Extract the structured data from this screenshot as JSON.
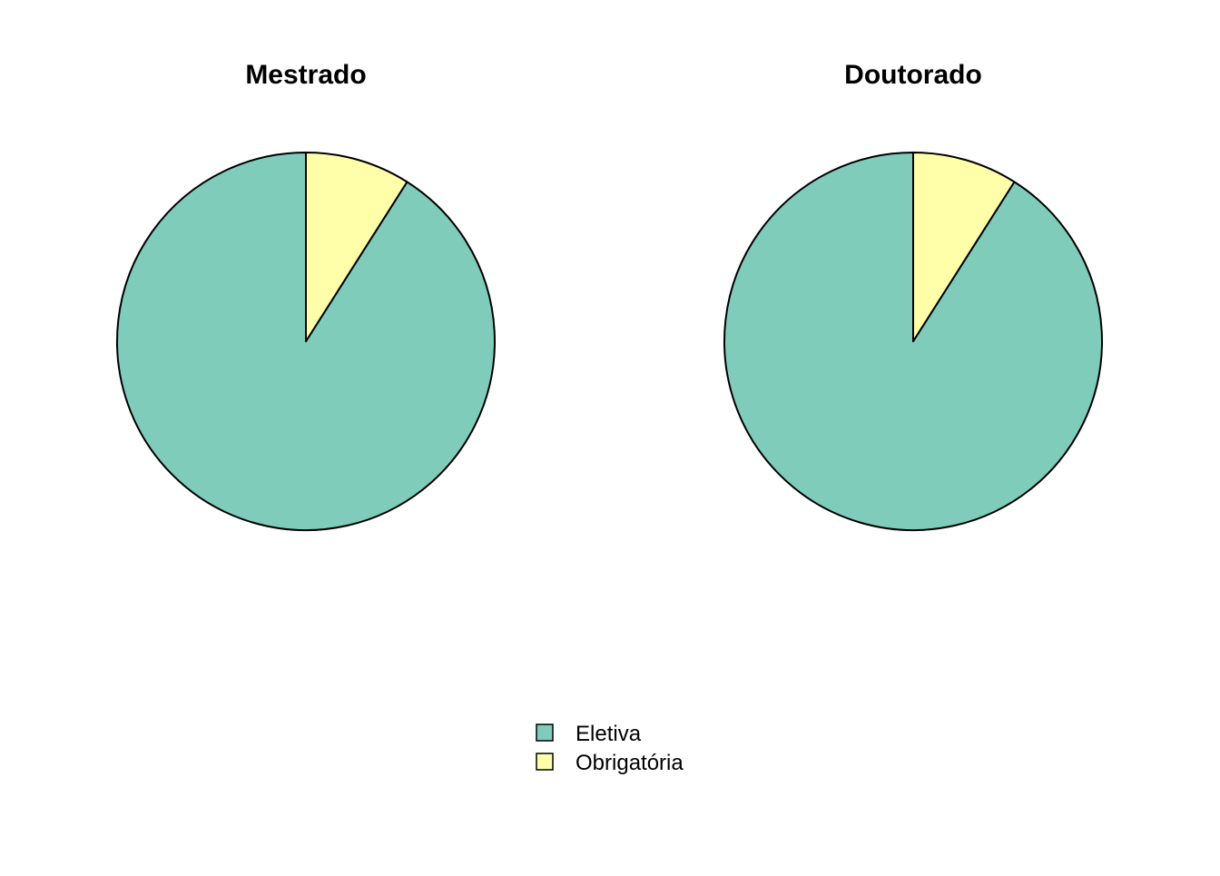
{
  "chart_data": [
    {
      "type": "pie",
      "title": "Mestrado",
      "categories": [
        "Eletiva",
        "Obrigatória"
      ],
      "values": [
        91,
        9
      ],
      "colors": [
        "#7FCCBB",
        "#FFFFAA"
      ],
      "start_angle": "12 o'clock",
      "direction": "clockwise, Obrigatória first"
    },
    {
      "type": "pie",
      "title": "Doutorado",
      "categories": [
        "Eletiva",
        "Obrigatória"
      ],
      "values": [
        91,
        9
      ],
      "colors": [
        "#7FCCBB",
        "#FFFFAA"
      ],
      "start_angle": "12 o'clock",
      "direction": "clockwise, Obrigatória first"
    }
  ],
  "legend": {
    "placement": "bottom-center",
    "items": [
      {
        "label": "Eletiva",
        "color": "#7FCCBB"
      },
      {
        "label": "Obrigatória",
        "color": "#FFFFAA"
      }
    ]
  }
}
